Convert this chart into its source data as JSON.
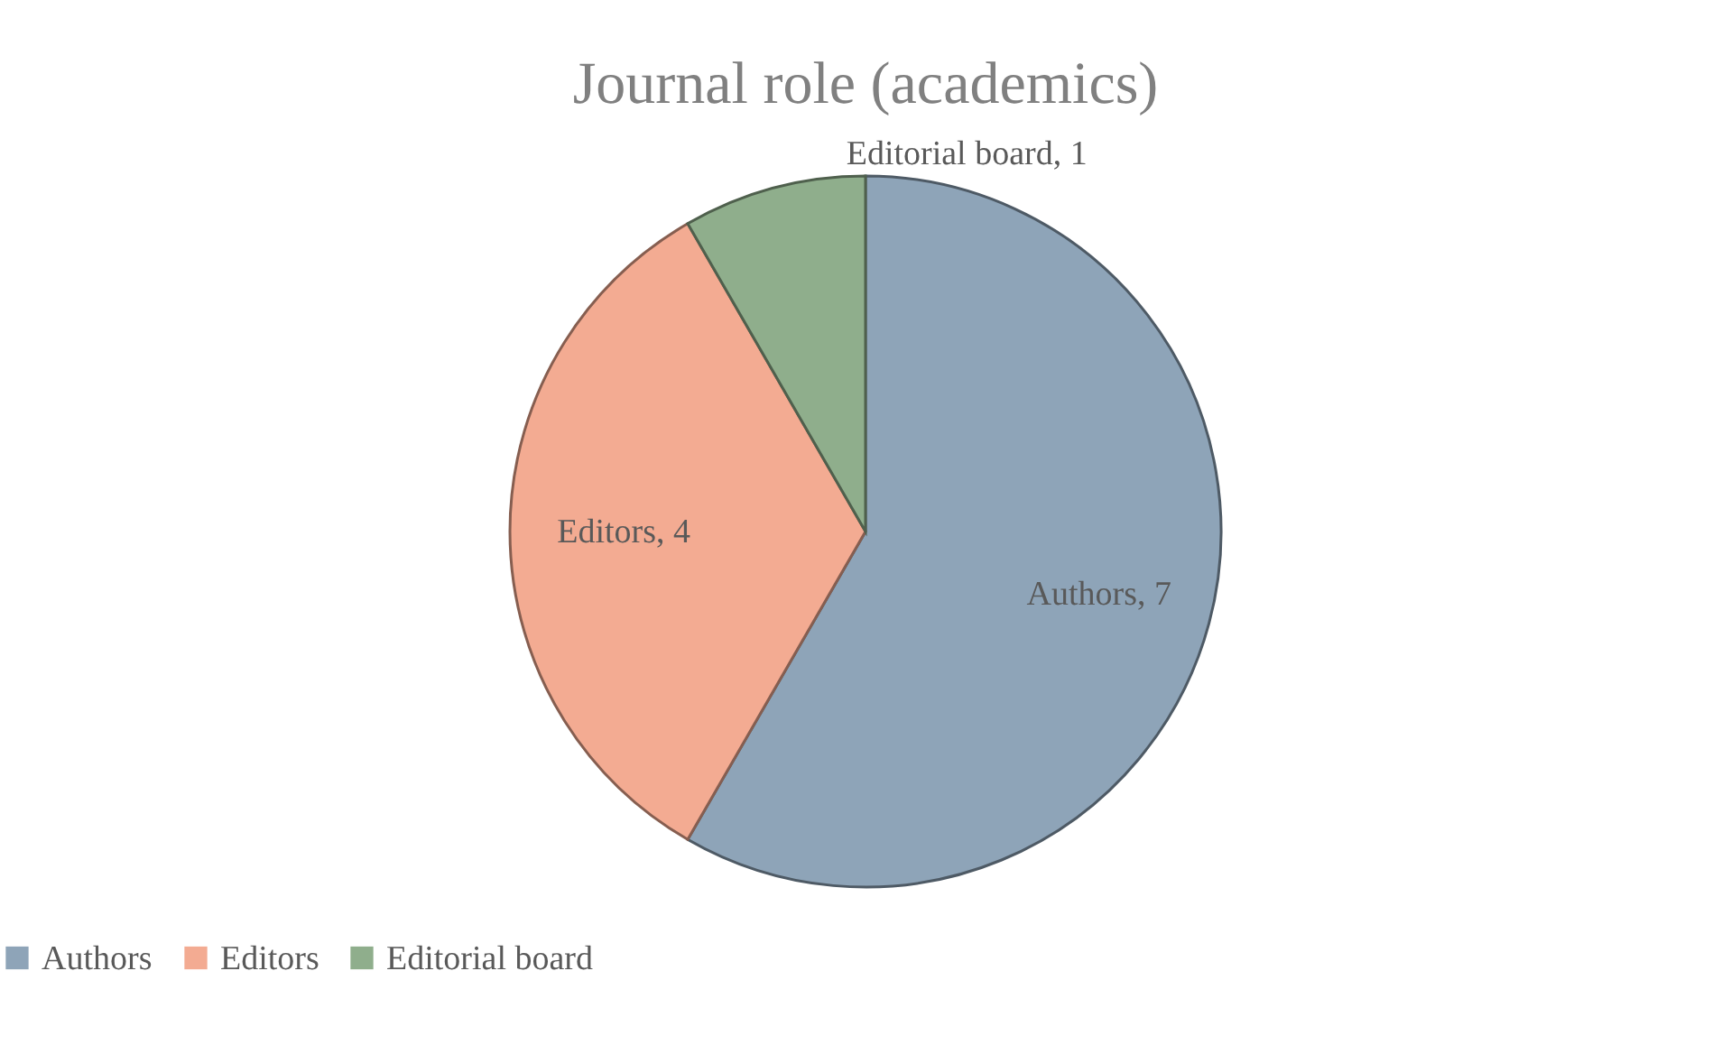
{
  "chart_data": {
    "type": "pie",
    "title": "Journal role (academics)",
    "categories": [
      "Authors",
      "Editors",
      "Editorial board"
    ],
    "values": [
      7,
      4,
      1
    ],
    "colors": [
      "#8ea4b8",
      "#f3ab92",
      "#8fae8c"
    ],
    "value_labels": [
      "Authors, 7",
      "Editors, 4",
      "Editorial board, 1"
    ],
    "legend": "bottom"
  }
}
